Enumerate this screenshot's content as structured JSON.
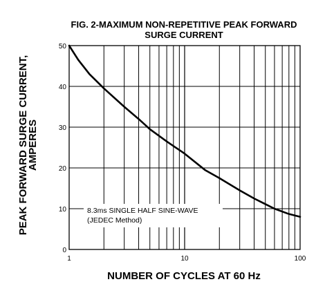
{
  "chart_data": {
    "type": "line",
    "title_line1": "FIG. 2-MAXIMUM NON-REPETITIVE PEAK FORWARD",
    "title_line2": "SURGE CURRENT",
    "xlabel": "NUMBER OF CYCLES AT 60 Hz",
    "ylabel_line1": "PEAK  FORWARD SURGE CURRENT,",
    "ylabel_line2": "AMPERES",
    "xscale": "log",
    "xlim": [
      1,
      100
    ],
    "ylim": [
      0,
      50
    ],
    "x_ticks": [
      1,
      10,
      100
    ],
    "x_tick_labels": [
      "1",
      "10",
      "100"
    ],
    "y_ticks": [
      0,
      10,
      20,
      30,
      40,
      50
    ],
    "y_tick_labels": [
      "0",
      "10",
      "20",
      "30",
      "40",
      "50"
    ],
    "grid": true,
    "annotation_line1": "8.3ms SINGLE HALF SINE-WAVE",
    "annotation_line2": "(JEDEC Method)",
    "series": [
      {
        "x": [
          1,
          1.2,
          1.5,
          2,
          3,
          4,
          5,
          7,
          10,
          15,
          20,
          30,
          40,
          60,
          80,
          100
        ],
        "y": [
          50,
          46.5,
          43,
          39.5,
          35,
          32,
          29.5,
          26.5,
          23.5,
          19.5,
          17.5,
          14.5,
          12.5,
          10,
          8.7,
          8
        ]
      }
    ]
  }
}
